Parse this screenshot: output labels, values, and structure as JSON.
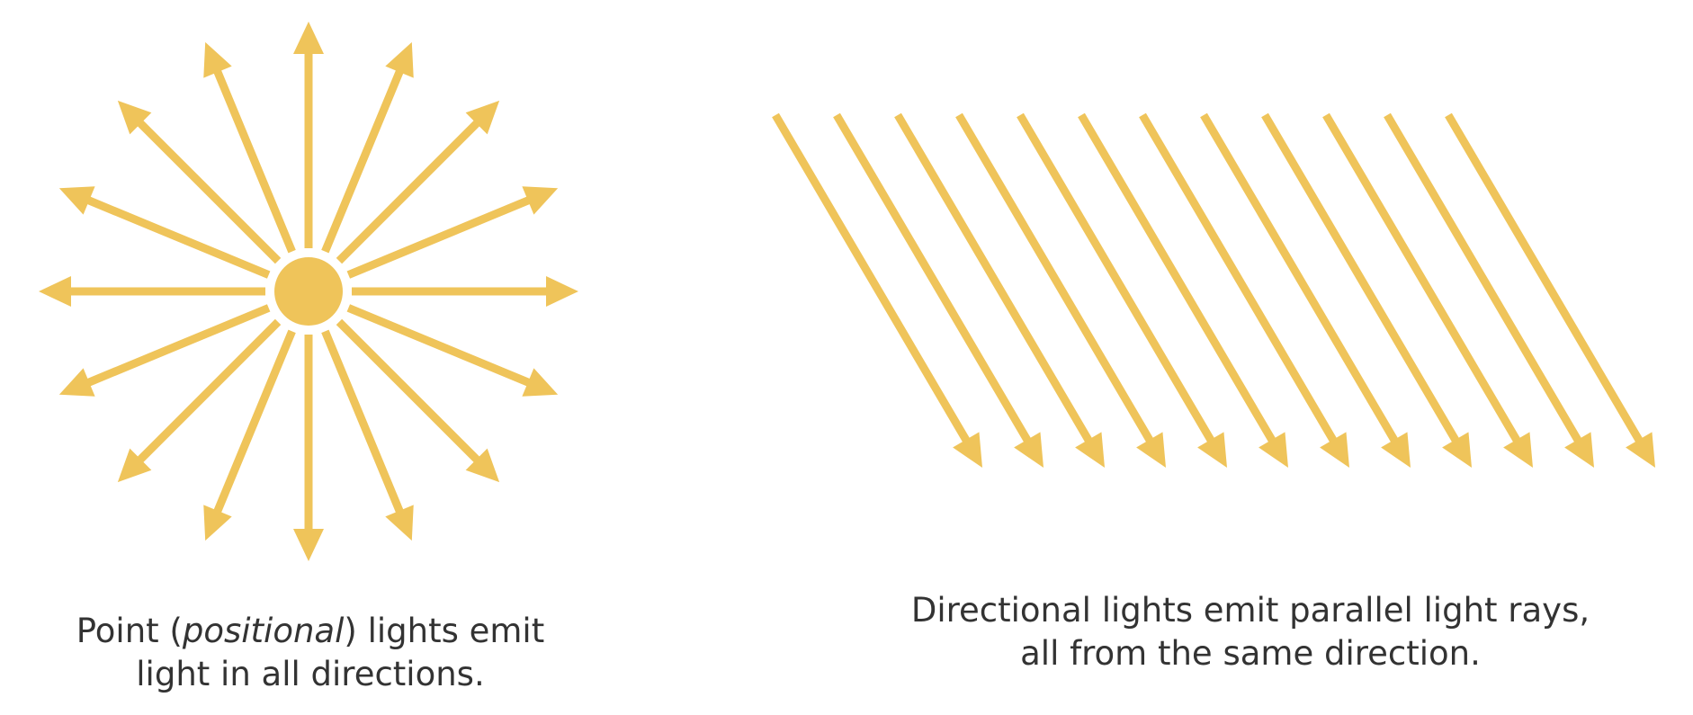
{
  "colors": {
    "ray": "#EFC45A",
    "text": "#333333",
    "background": "#FFFFFF"
  },
  "point_light": {
    "ray_count": 16,
    "caption": {
      "before": "Point (",
      "emphasis": "positional",
      "after": ") lights emit",
      "line2": "light in all directions."
    }
  },
  "directional_light": {
    "ray_count": 12,
    "caption": {
      "line1": "Directional lights emit parallel light rays,",
      "line2": "all from the same direction."
    }
  }
}
